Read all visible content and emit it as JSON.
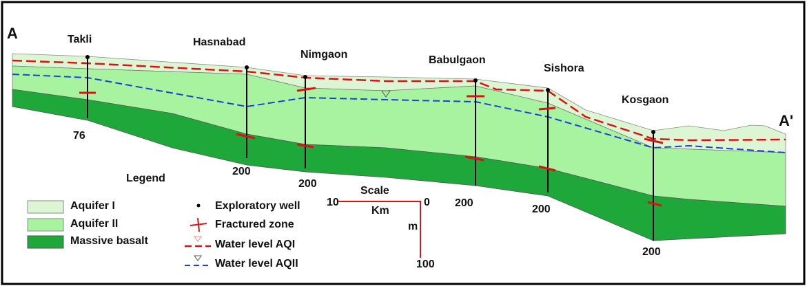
{
  "section": {
    "start": "A",
    "end": "A'"
  },
  "wells": [
    {
      "name": "Takli",
      "depth": 76
    },
    {
      "name": "Hasnabad",
      "depth": 200
    },
    {
      "name": "Nimgaon",
      "depth": 200
    },
    {
      "name": "Babulgaon",
      "depth": 200
    },
    {
      "name": "Sishora",
      "depth": 200
    },
    {
      "name": "Kosgaon",
      "depth": 200
    }
  ],
  "legend": {
    "title": "Legend",
    "layers": [
      "Aquifer I",
      "Aquifer II",
      "Massive basalt"
    ],
    "symbols": [
      "Exploratory well",
      "Fractured zone",
      "Water level AQI",
      "Water level AQII"
    ]
  },
  "scale": {
    "title": "Scale",
    "left": "10",
    "right": "0",
    "horizontal_unit": "Km",
    "vertical_unit": "m",
    "bottom": "100"
  }
}
